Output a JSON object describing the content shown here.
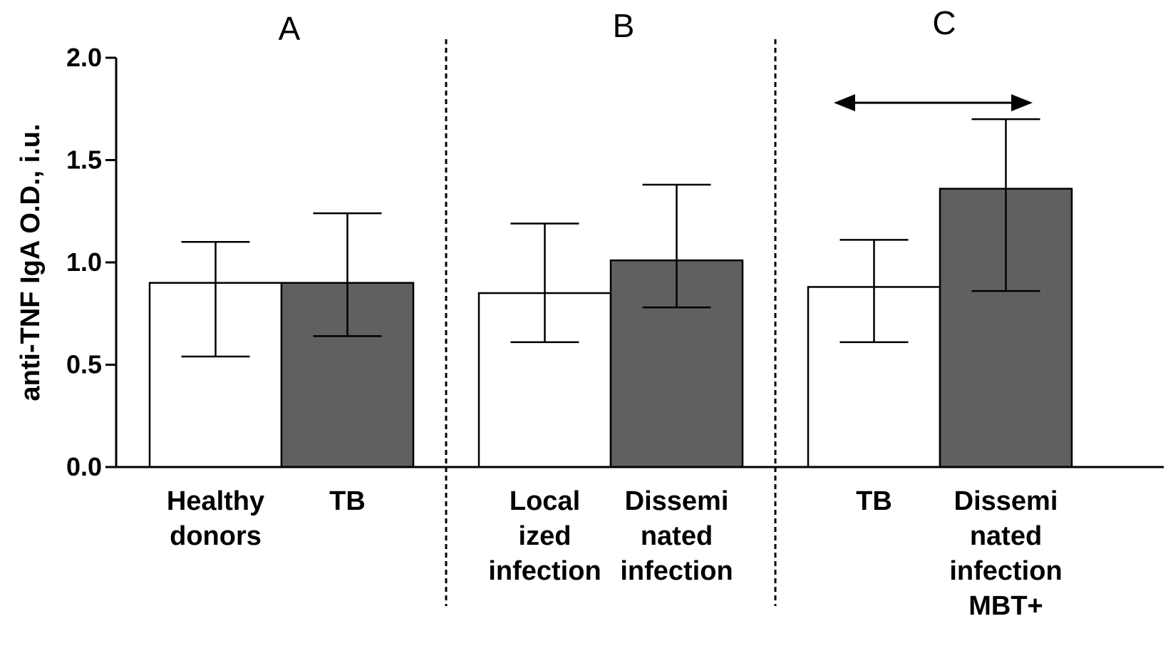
{
  "chart_data": {
    "type": "bar",
    "title": "",
    "xlabel": "",
    "ylabel": "anti-TNF IgA O.D., i.u.",
    "ylim": [
      0,
      2.0
    ],
    "yticks": [
      "0.0",
      "0.5",
      "1.0",
      "1.5",
      "2.0"
    ],
    "ytick_values": [
      0,
      0.5,
      1.0,
      1.5,
      2.0
    ],
    "grid": false,
    "panels": [
      {
        "label": "A",
        "bars": [
          {
            "category": "Healthy donors",
            "label_lines": [
              "Healthy",
              "donors"
            ],
            "value": 0.9,
            "err_low": 0.54,
            "err_high": 1.1,
            "fill": "#ffffff"
          },
          {
            "category": "TB",
            "label_lines": [
              "TB"
            ],
            "value": 0.9,
            "err_low": 0.64,
            "err_high": 1.24,
            "fill": "#606060"
          }
        ]
      },
      {
        "label": "B",
        "bars": [
          {
            "category": "Localized infection",
            "label_lines": [
              "Local",
              "ized",
              "infection"
            ],
            "value": 0.85,
            "err_low": 0.61,
            "err_high": 1.19,
            "fill": "#ffffff"
          },
          {
            "category": "Disseminated infection",
            "label_lines": [
              "Dissemi",
              "nated",
              "infection"
            ],
            "value": 1.01,
            "err_low": 0.78,
            "err_high": 1.38,
            "fill": "#606060"
          }
        ]
      },
      {
        "label": "C",
        "bars": [
          {
            "category": "TB",
            "label_lines": [
              "TB"
            ],
            "value": 0.88,
            "err_low": 0.61,
            "err_high": 1.11,
            "fill": "#ffffff"
          },
          {
            "category": "Disseminated infection MBT+",
            "label_lines": [
              "Dissemi",
              "nated",
              "infection",
              "MBT+"
            ],
            "value": 1.36,
            "err_low": 0.86,
            "err_high": 1.7,
            "fill": "#606060"
          }
        ],
        "annotation": {
          "type": "double-arrow",
          "y_value": 1.78
        }
      }
    ],
    "colors": {
      "white_bar": "#ffffff",
      "dark_bar": "#606060",
      "stroke": "#000000"
    }
  }
}
